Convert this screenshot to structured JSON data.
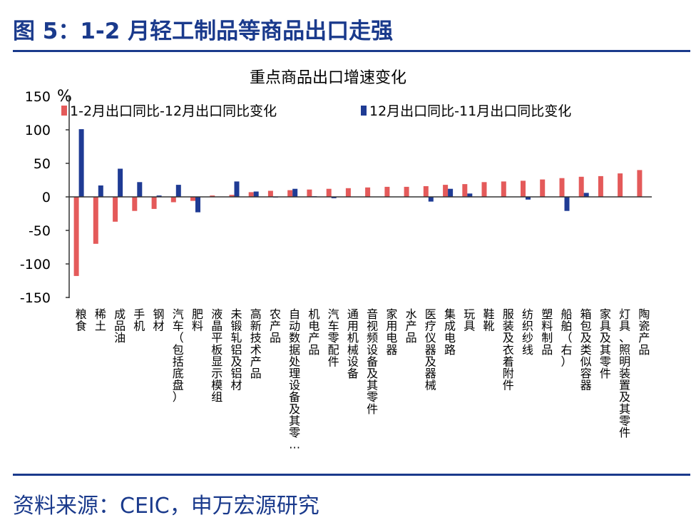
{
  "header": {
    "title": "图 5：1-2 月轻工制品等商品出口走强"
  },
  "footer": {
    "source": "资料来源：CEIC，申万宏源研究"
  },
  "colors": {
    "brand": "#1a3a8c",
    "series1": "#e45a5a",
    "series2": "#1f3b94"
  },
  "chart_data": {
    "type": "bar",
    "title": "重点商品出口增速变化",
    "ylabel": "%",
    "ylim": [
      -150,
      150
    ],
    "yticks": [
      150,
      100,
      50,
      0,
      -50,
      -100,
      -150
    ],
    "ytick_labels": [
      "150",
      "100",
      "50",
      "0",
      "-50",
      "-100",
      "-150"
    ],
    "legend_position": "top",
    "categories": [
      "粮食",
      "稀土",
      "成品油",
      "手机",
      "钢材",
      "汽车（包括底盘）",
      "肥料",
      "液晶平板显示模组",
      "未锻轧铝及铝材",
      "高新技术产品",
      "农产品",
      "自动数据处理设备及其零…",
      "机电产品",
      "汽车零配件",
      "通用机械设备",
      "音视频设备及其零件",
      "家用电器",
      "水产品",
      "医疗仪器及器械",
      "集成电路",
      "玩具",
      "鞋靴",
      "服装及衣着附件",
      "纺织纱线",
      "塑料制品",
      "船舶（右）",
      "箱包及类似容器",
      "家具及其零件",
      "灯具、照明装置及其零件",
      "陶瓷产品"
    ],
    "series": [
      {
        "name": "1-2月出口同比-12月出口同比变化",
        "values": [
          -118,
          -70,
          -37,
          -21,
          -18,
          -8,
          -6,
          2,
          3,
          7,
          9,
          10,
          11,
          12,
          13,
          14,
          15,
          15,
          16,
          18,
          19,
          22,
          23,
          24,
          26,
          28,
          30,
          31,
          35,
          40
        ]
      },
      {
        "name": "12月出口同比-11月出口同比变化",
        "values": [
          101,
          17,
          42,
          22,
          2,
          18,
          -23,
          0,
          23,
          8,
          -1,
          12,
          1,
          -2,
          0,
          0,
          0,
          0,
          -7,
          12,
          5,
          0,
          0,
          -4,
          0,
          -21,
          6,
          0,
          0,
          0
        ]
      }
    ]
  }
}
